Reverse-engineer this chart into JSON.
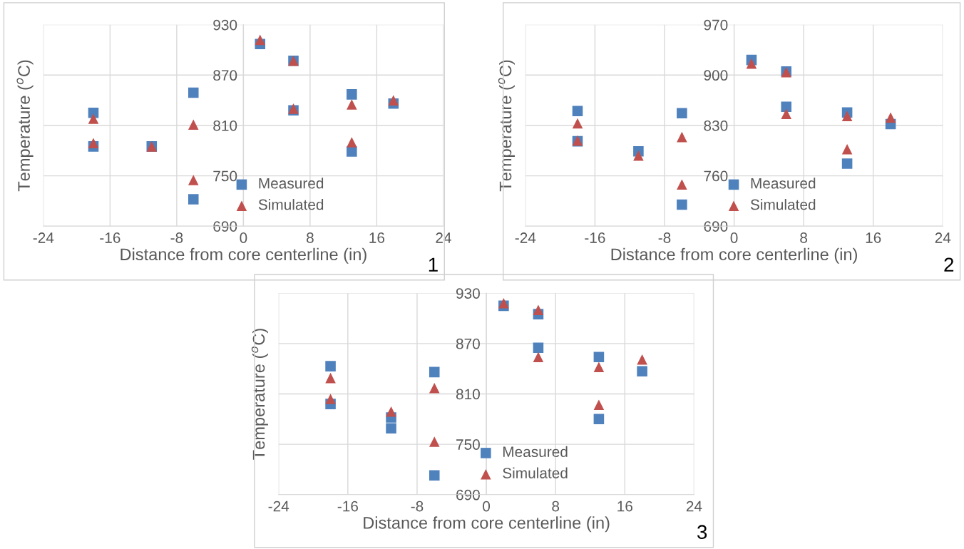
{
  "chart_data": [
    {
      "type": "scatter",
      "xlabel": "Distance from core centerline (in)",
      "ylabel": "Temperature ($^{o}$C)",
      "xlim": [
        -24,
        24
      ],
      "xticks": [
        -24,
        -16,
        -8,
        0,
        8,
        16,
        24
      ],
      "ylim": [
        690,
        930
      ],
      "yticks": [
        690,
        750,
        810,
        870,
        930
      ],
      "grid": true,
      "legend": "bottom",
      "annotations": [
        "1"
      ],
      "series": [
        {
          "name": "Measured",
          "color": "#4f81bd",
          "marker": "square",
          "x": [
            -18,
            -18,
            -11,
            -6,
            -6,
            2,
            6,
            6,
            13,
            13,
            18
          ],
          "values": [
            825,
            785,
            785,
            849,
            722,
            907,
            887,
            828,
            847,
            779,
            836
          ]
        },
        {
          "name": "Simulated",
          "color": "#c0504d",
          "marker": "triangle",
          "x": [
            -18,
            -18,
            -11,
            -6,
            -6,
            2,
            6,
            6,
            13,
            13,
            18
          ],
          "values": [
            818,
            789,
            785,
            811,
            745,
            912,
            887,
            830,
            835,
            790,
            840
          ]
        }
      ]
    },
    {
      "type": "scatter",
      "xlabel": "Distance from core centerline (in)",
      "ylabel": "Temperature ($^{o}$C)",
      "xlim": [
        -24,
        24
      ],
      "xticks": [
        -24,
        -16,
        -8,
        0,
        8,
        16,
        24
      ],
      "ylim": [
        690,
        970
      ],
      "yticks": [
        690,
        760,
        830,
        900,
        970
      ],
      "grid": true,
      "legend": "bottom",
      "annotations": [
        "2"
      ],
      "series": [
        {
          "name": "Measured",
          "color": "#4f81bd",
          "marker": "square",
          "x": [
            -18,
            -18,
            -11,
            -6,
            -6,
            2,
            6,
            6,
            13,
            13,
            18
          ],
          "values": [
            850,
            808,
            794,
            847,
            720,
            921,
            905,
            856,
            848,
            777,
            832
          ]
        },
        {
          "name": "Simulated",
          "color": "#c0504d",
          "marker": "triangle",
          "x": [
            -18,
            -18,
            -11,
            -6,
            -6,
            2,
            6,
            6,
            13,
            13,
            18
          ],
          "values": [
            833,
            809,
            788,
            814,
            748,
            916,
            904,
            846,
            843,
            797,
            841
          ]
        }
      ]
    },
    {
      "type": "scatter",
      "xlabel": "Distance from core centerline (in)",
      "ylabel": "Temperature ($^{o}$C)",
      "xlim": [
        -24,
        24
      ],
      "xticks": [
        -24,
        -16,
        -8,
        0,
        8,
        16,
        24
      ],
      "ylim": [
        690,
        930
      ],
      "yticks": [
        690,
        750,
        810,
        870,
        930
      ],
      "grid": true,
      "legend": "bottom",
      "annotations": [
        "3"
      ],
      "series": [
        {
          "name": "Measured",
          "color": "#4f81bd",
          "marker": "square",
          "x": [
            -18,
            -18,
            -11,
            -11,
            -6,
            -6,
            2,
            6,
            6,
            13,
            13,
            18
          ],
          "values": [
            843,
            798,
            782,
            769,
            836,
            713,
            915,
            905,
            865,
            854,
            780,
            837
          ]
        },
        {
          "name": "Simulated",
          "color": "#c0504d",
          "marker": "triangle",
          "x": [
            -18,
            -18,
            -11,
            -6,
            -6,
            2,
            6,
            6,
            13,
            13,
            18
          ],
          "values": [
            829,
            804,
            789,
            817,
            753,
            918,
            910,
            854,
            842,
            797,
            851
          ]
        }
      ]
    }
  ]
}
